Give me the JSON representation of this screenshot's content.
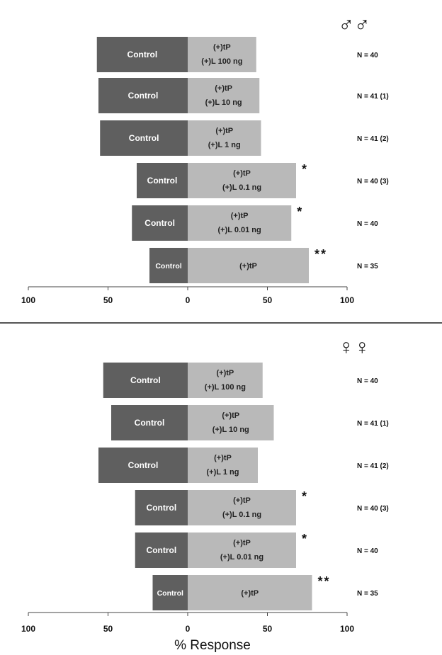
{
  "colors": {
    "control_bar": "#5f5f5f",
    "treatment_bar": "#b9b9b9",
    "axis": "#444444",
    "text": "#111111",
    "bar_text_light": "#ffffff",
    "bar_text_dark": "#222222"
  },
  "axis_label": "% Response",
  "chart_data": [
    {
      "type": "bar",
      "orientation": "horizontal-diverging",
      "panel_symbol": "♂♂",
      "xlim": [
        -100,
        100
      ],
      "tick_labels": [
        "100",
        "50",
        "0",
        "50",
        "100"
      ],
      "tick_values": [
        -100,
        -50,
        0,
        50,
        100
      ],
      "rows": [
        {
          "control_label": "Control",
          "control_value": 57,
          "treatment_lines": [
            "(+)tP",
            "(+)L 100 ng"
          ],
          "treatment_value": 43,
          "n_label": "N = 40",
          "significance": ""
        },
        {
          "control_label": "Control",
          "control_value": 56,
          "treatment_lines": [
            "(+)tP",
            "(+)L 10 ng"
          ],
          "treatment_value": 45,
          "n_label": "N = 41 (1)",
          "significance": ""
        },
        {
          "control_label": "Control",
          "control_value": 55,
          "treatment_lines": [
            "(+)tP",
            "(+)L 1 ng"
          ],
          "treatment_value": 46,
          "n_label": "N = 41 (2)",
          "significance": ""
        },
        {
          "control_label": "Control",
          "control_value": 32,
          "treatment_lines": [
            "(+)tP",
            "(+)L 0.1 ng"
          ],
          "treatment_value": 68,
          "n_label": "N = 40 (3)",
          "significance": "*"
        },
        {
          "control_label": "Control",
          "control_value": 35,
          "treatment_lines": [
            "(+)tP",
            "(+)L 0.01 ng"
          ],
          "treatment_value": 65,
          "n_label": "N = 40",
          "significance": "*"
        },
        {
          "control_label": "Control",
          "control_value": 24,
          "treatment_lines": [
            "(+)tP"
          ],
          "treatment_value": 76,
          "n_label": "N = 35",
          "significance": "**"
        }
      ]
    },
    {
      "type": "bar",
      "orientation": "horizontal-diverging",
      "panel_symbol": "♀♀",
      "xlim": [
        -100,
        100
      ],
      "tick_labels": [
        "100",
        "50",
        "0",
        "50",
        "100"
      ],
      "tick_values": [
        -100,
        -50,
        0,
        50,
        100
      ],
      "rows": [
        {
          "control_label": "Control",
          "control_value": 53,
          "treatment_lines": [
            "(+)tP",
            "(+)L 100 ng"
          ],
          "treatment_value": 47,
          "n_label": "N = 40",
          "significance": ""
        },
        {
          "control_label": "Control",
          "control_value": 48,
          "treatment_lines": [
            "(+)tP",
            "(+)L 10 ng"
          ],
          "treatment_value": 54,
          "n_label": "N = 41 (1)",
          "significance": ""
        },
        {
          "control_label": "Control",
          "control_value": 56,
          "treatment_lines": [
            "(+)tP",
            "(+)L 1 ng"
          ],
          "treatment_value": 44,
          "n_label": "N = 41 (2)",
          "significance": ""
        },
        {
          "control_label": "Control",
          "control_value": 33,
          "treatment_lines": [
            "(+)tP",
            "(+)L 0.1 ng"
          ],
          "treatment_value": 68,
          "n_label": "N = 40 (3)",
          "significance": "*"
        },
        {
          "control_label": "Control",
          "control_value": 33,
          "treatment_lines": [
            "(+)tP",
            "(+)L 0.01 ng"
          ],
          "treatment_value": 68,
          "n_label": "N = 40",
          "significance": "*"
        },
        {
          "control_label": "Control",
          "control_value": 22,
          "treatment_lines": [
            "(+)tP"
          ],
          "treatment_value": 78,
          "n_label": "N = 35",
          "significance": "**"
        }
      ]
    }
  ]
}
